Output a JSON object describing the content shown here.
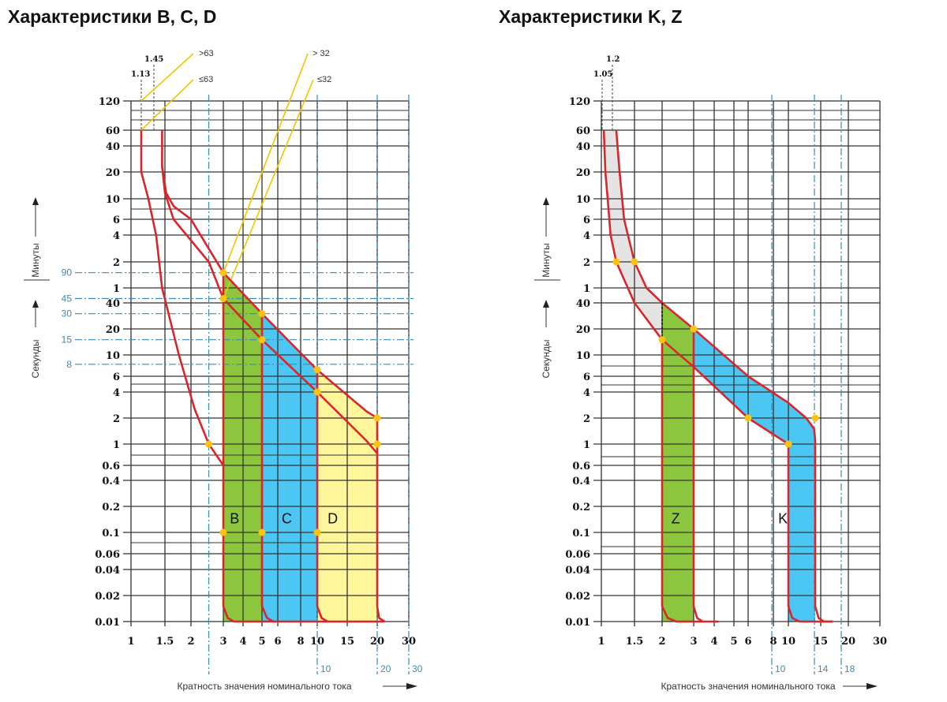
{
  "colors": {
    "curve": "#d9262b",
    "grid": "#333333",
    "ref": "#3b8bb5",
    "dot": "#ffc20e",
    "callout": "#f2c500",
    "green": "#8cc63f",
    "blue": "#4cc6f2",
    "yellow": "#fff59a",
    "gray": "#e4e4e4"
  },
  "chart_data": [
    {
      "type": "line",
      "title": "Характеристики B, C, D",
      "xlabel": "Кратность значения номинального тока",
      "ylabel_minutes": "Минуты",
      "ylabel_seconds": "Секунды",
      "x_ticks": [
        "1",
        "1.5",
        "2",
        "3",
        "4",
        "5",
        "6",
        "8",
        "10",
        "15",
        "20",
        "30"
      ],
      "x_values": [
        1,
        1.5,
        2,
        3,
        4,
        5,
        6,
        8,
        10,
        15,
        20,
        30
      ],
      "y_ticks": [
        {
          "label": "120",
          "seconds": 7200
        },
        {
          "label": "60",
          "seconds": 3600
        },
        {
          "label": "40",
          "seconds": 2400
        },
        {
          "label": "20",
          "seconds": 1200
        },
        {
          "label": "10",
          "seconds": 600
        },
        {
          "label": "6",
          "seconds": 360
        },
        {
          "label": "4",
          "seconds": 240
        },
        {
          "label": "2",
          "seconds": 120
        },
        {
          "label": "1",
          "seconds": 60
        },
        {
          "label": "40",
          "seconds": 40
        },
        {
          "label": "20",
          "seconds": 20
        },
        {
          "label": "10",
          "seconds": 10
        },
        {
          "label": "6",
          "seconds": 6
        },
        {
          "label": "4",
          "seconds": 4
        },
        {
          "label": "2",
          "seconds": 2
        },
        {
          "label": "1",
          "seconds": 1
        },
        {
          "label": "0.6",
          "seconds": 0.6
        },
        {
          "label": "0.4",
          "seconds": 0.4
        },
        {
          "label": "0.2",
          "seconds": 0.2
        },
        {
          "label": "0.1",
          "seconds": 0.1
        },
        {
          "label": "0.06",
          "seconds": 0.06
        },
        {
          "label": "0.04",
          "seconds": 0.04
        },
        {
          "label": "0.02",
          "seconds": 0.02
        },
        {
          "label": "0.01",
          "seconds": 0.01
        }
      ],
      "ref_lines_x": [
        {
          "value": 2.5,
          "label": ""
        },
        {
          "value": 10,
          "label": "10"
        },
        {
          "value": 20,
          "label": "20"
        },
        {
          "value": 30,
          "label": "30"
        }
      ],
      "ref_lines_y": [
        {
          "seconds": 90,
          "label": "90"
        },
        {
          "seconds": 45,
          "label": "45"
        },
        {
          "seconds": 30,
          "label": "30"
        },
        {
          "seconds": 15,
          "label": "15"
        },
        {
          "seconds": 8,
          "label": "8"
        }
      ],
      "markers_x": [
        {
          "value": 1.13,
          "label": "1.13"
        },
        {
          "value": 1.45,
          "label": "1.45"
        }
      ],
      "callouts": [
        ">63",
        "≤63",
        "> 32",
        "≤32"
      ],
      "regions": [
        {
          "label": "B",
          "color": "green",
          "points": [
            [
              3,
              0.01
            ],
            [
              3,
              90
            ],
            [
              5,
              30
            ],
            [
              5,
              0.01
            ]
          ],
          "label_at": [
            3.3,
            0.15
          ]
        },
        {
          "label": "C",
          "color": "blue",
          "points": [
            [
              5,
              0.01
            ],
            [
              5,
              30
            ],
            [
              10,
              7
            ],
            [
              10,
              0.01
            ]
          ],
          "label_at": [
            6.3,
            0.15
          ]
        },
        {
          "label": "D",
          "color": "yellow",
          "points": [
            [
              10,
              0.01
            ],
            [
              10,
              7
            ],
            [
              18,
              2.4
            ],
            [
              20,
              2
            ],
            [
              20,
              0.01
            ]
          ],
          "label_at": [
            11.5,
            0.15
          ]
        }
      ],
      "series": [
        {
          "points": [
            [
              1.13,
              3600
            ],
            [
              1.13,
              1200
            ],
            [
              1.23,
              600
            ],
            [
              1.35,
              240
            ],
            [
              1.45,
              60
            ],
            [
              1.75,
              10
            ],
            [
              2.1,
              2.5
            ],
            [
              2.5,
              1
            ],
            [
              3,
              0.6
            ]
          ]
        },
        {
          "points": [
            [
              1.45,
              3600
            ],
            [
              1.45,
              1400
            ],
            [
              1.52,
              700
            ],
            [
              1.65,
              500
            ],
            [
              2,
              360
            ],
            [
              3,
              90
            ],
            [
              5,
              30
            ],
            [
              10,
              7
            ],
            [
              18,
              2.4
            ],
            [
              20,
              2
            ],
            [
              20,
              0.015
            ],
            [
              20.5,
              0.011
            ],
            [
              22,
              0.01
            ]
          ]
        },
        {
          "points": [
            [
              1.45,
              1400
            ],
            [
              1.5,
              700
            ],
            [
              1.65,
              360
            ],
            [
              2.5,
              120
            ],
            [
              3,
              45
            ],
            [
              5,
              15
            ],
            [
              10,
              4
            ],
            [
              18,
              1.1
            ],
            [
              20,
              0.8
            ]
          ]
        },
        {
          "points": [
            [
              3,
              90
            ],
            [
              3,
              0.015
            ],
            [
              3.2,
              0.011
            ],
            [
              3.5,
              0.01
            ],
            [
              22,
              0.01
            ]
          ]
        },
        {
          "points": [
            [
              5,
              30
            ],
            [
              5,
              0.015
            ],
            [
              5.3,
              0.011
            ],
            [
              5.7,
              0.01
            ]
          ]
        },
        {
          "points": [
            [
              10,
              7
            ],
            [
              10,
              0.015
            ],
            [
              10.6,
              0.011
            ],
            [
              11.5,
              0.01
            ]
          ]
        }
      ],
      "dots": [
        [
          3,
          90
        ],
        [
          3,
          45
        ],
        [
          5,
          30
        ],
        [
          5,
          15
        ],
        [
          10,
          7
        ],
        [
          10,
          4
        ],
        [
          20,
          2
        ],
        [
          20,
          1
        ],
        [
          2.5,
          1
        ],
        [
          3,
          0.1
        ],
        [
          5,
          0.1
        ],
        [
          10,
          0.1
        ]
      ]
    },
    {
      "type": "line",
      "title": "Характеристики K, Z",
      "xlabel": "Кратность значения номинального тока",
      "ylabel_minutes": "Минуты",
      "ylabel_seconds": "Секунды",
      "x_ticks": [
        "1",
        "1.5",
        "2",
        "3",
        "4",
        "5",
        "6",
        "8",
        "10",
        "15",
        "20",
        "30"
      ],
      "x_values": [
        1,
        1.5,
        2,
        3,
        4,
        5,
        6,
        8,
        10,
        15,
        20,
        30
      ],
      "y_ticks": [
        {
          "label": "120",
          "seconds": 7200
        },
        {
          "label": "60",
          "seconds": 3600
        },
        {
          "label": "40",
          "seconds": 2400
        },
        {
          "label": "20",
          "seconds": 1200
        },
        {
          "label": "10",
          "seconds": 600
        },
        {
          "label": "6",
          "seconds": 360
        },
        {
          "label": "4",
          "seconds": 240
        },
        {
          "label": "2",
          "seconds": 120
        },
        {
          "label": "1",
          "seconds": 60
        },
        {
          "label": "40",
          "seconds": 40
        },
        {
          "label": "20",
          "seconds": 20
        },
        {
          "label": "10",
          "seconds": 10
        },
        {
          "label": "6",
          "seconds": 6
        },
        {
          "label": "4",
          "seconds": 4
        },
        {
          "label": "2",
          "seconds": 2
        },
        {
          "label": "1",
          "seconds": 1
        },
        {
          "label": "0.6",
          "seconds": 0.6
        },
        {
          "label": "0.4",
          "seconds": 0.4
        },
        {
          "label": "0.2",
          "seconds": 0.2
        },
        {
          "label": "0.1",
          "seconds": 0.1
        },
        {
          "label": "0.06",
          "seconds": 0.06
        },
        {
          "label": "0.04",
          "seconds": 0.04
        },
        {
          "label": "0.02",
          "seconds": 0.02
        },
        {
          "label": "0.01",
          "seconds": 0.01
        }
      ],
      "ref_lines_x": [
        {
          "value": 10,
          "label": "10"
        },
        {
          "value": 14,
          "label": "14"
        },
        {
          "value": 18,
          "label": "18"
        }
      ],
      "ref_lines_y": [],
      "markers_x": [
        {
          "value": 1.05,
          "label": "1.05"
        },
        {
          "value": 1.2,
          "label": "1.2"
        }
      ],
      "callouts": [],
      "regions": [
        {
          "label": "",
          "color": "gray",
          "points": [
            [
              1.2,
              3600
            ],
            [
              1.25,
              1200
            ],
            [
              1.32,
              360
            ],
            [
              1.5,
              120
            ],
            [
              1.7,
              60
            ],
            [
              2,
              40
            ],
            [
              2,
              15
            ],
            [
              1.5,
              40
            ],
            [
              1.2,
              120
            ],
            [
              1.12,
              240
            ],
            [
              1.08,
              600
            ],
            [
              1.05,
              1200
            ],
            [
              1.03,
              3600
            ]
          ]
        },
        {
          "label": "Z",
          "color": "green",
          "points": [
            [
              2,
              0.01
            ],
            [
              2,
              40
            ],
            [
              3,
              20
            ],
            [
              3,
              0.01
            ]
          ],
          "label_at": [
            2.25,
            0.15
          ]
        },
        {
          "label": "K",
          "color": "blue",
          "points": [
            [
              3,
              20
            ],
            [
              6,
              6
            ],
            [
              10,
              3
            ],
            [
              12.5,
              2
            ],
            [
              13.8,
              1.5
            ],
            [
              14,
              1.1
            ],
            [
              14,
              0.01
            ],
            [
              10,
              0.01
            ],
            [
              10,
              1
            ],
            [
              6,
              2
            ],
            [
              3,
              7.5
            ]
          ],
          "label_at": [
            8.6,
            0.15
          ]
        }
      ],
      "series": [
        {
          "points": [
            [
              1.03,
              3600
            ],
            [
              1.05,
              1200
            ],
            [
              1.08,
              600
            ],
            [
              1.12,
              240
            ],
            [
              1.2,
              120
            ],
            [
              1.5,
              40
            ],
            [
              2,
              15
            ],
            [
              3,
              7.5
            ],
            [
              6,
              2
            ],
            [
              10,
              1
            ],
            [
              10,
              0.7
            ],
            [
              10,
              0.015
            ],
            [
              10.5,
              0.011
            ],
            [
              11.5,
              0.01
            ],
            [
              17,
              0.01
            ]
          ]
        },
        {
          "points": [
            [
              1.2,
              3600
            ],
            [
              1.25,
              1200
            ],
            [
              1.32,
              360
            ],
            [
              1.5,
              120
            ],
            [
              1.7,
              60
            ],
            [
              2,
              40
            ],
            [
              3,
              20
            ],
            [
              6,
              6
            ],
            [
              10,
              3
            ],
            [
              12.5,
              2
            ],
            [
              13.8,
              1.5
            ],
            [
              14,
              1.1
            ],
            [
              14,
              0.015
            ],
            [
              14.6,
              0.011
            ],
            [
              15.5,
              0.01
            ],
            [
              17,
              0.01
            ]
          ]
        },
        {
          "points": [
            [
              2,
              15
            ],
            [
              2,
              0.015
            ],
            [
              2.15,
              0.011
            ],
            [
              2.4,
              0.01
            ],
            [
              4.2,
              0.01
            ]
          ]
        },
        {
          "points": [
            [
              3,
              20
            ],
            [
              3,
              0.015
            ],
            [
              3.15,
              0.011
            ],
            [
              3.4,
              0.01
            ]
          ]
        }
      ],
      "dashed_divider": [
        [
          2,
          40
        ],
        [
          2,
          15
        ]
      ],
      "dots": [
        [
          1.2,
          120
        ],
        [
          1.5,
          120
        ],
        [
          3,
          20
        ],
        [
          2,
          15
        ],
        [
          6,
          2
        ],
        [
          10,
          1
        ],
        [
          14,
          2
        ]
      ]
    }
  ]
}
